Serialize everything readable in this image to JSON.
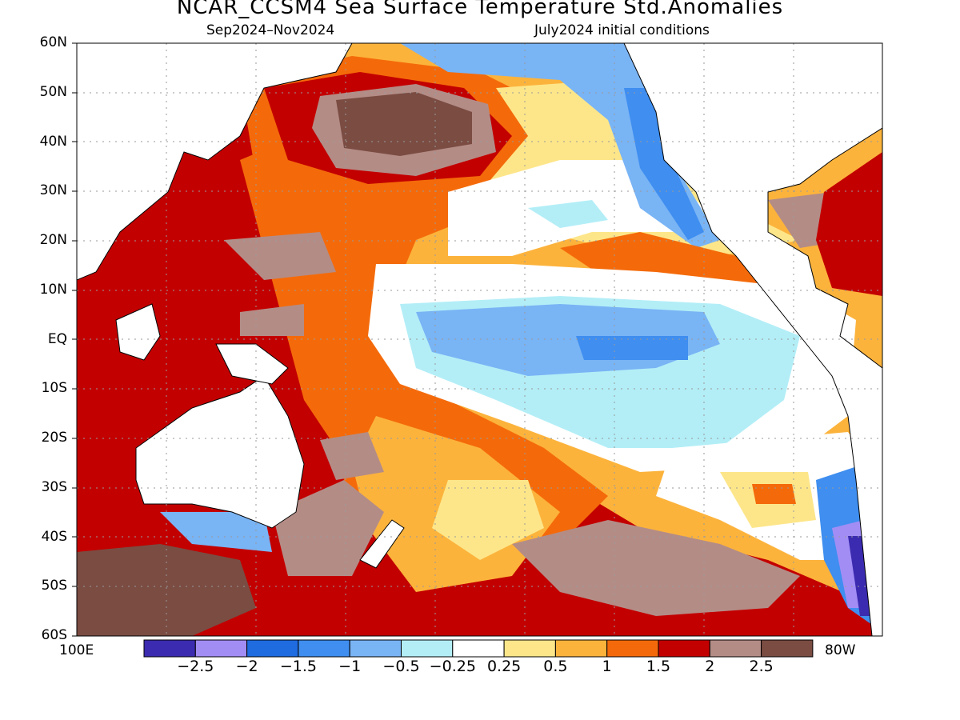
{
  "title": "NCAR_CCSM4 Sea Surface Temperature Std.Anomalies",
  "subtitle_left": "Sep2024–Nov2024",
  "subtitle_right": "July2024 initial conditions",
  "lat_labels": [
    "60N",
    "50N",
    "40N",
    "30N",
    "20N",
    "10N",
    "EQ",
    "10S",
    "20S",
    "30S",
    "40S",
    "50S",
    "60S"
  ],
  "lon_labels": {
    "left": "100E",
    "right": "80W"
  },
  "colorbar": {
    "labels": [
      "-2.5",
      "-2",
      "-1.5",
      "-1",
      "-0.5",
      "-0.25",
      "0.25",
      "0.5",
      "1",
      "1.5",
      "2",
      "2.5"
    ],
    "colors": [
      "#3b2bb0",
      "#a28df5",
      "#1f6be0",
      "#3f8ef0",
      "#79b4f5",
      "#b3eef7",
      "#ffffff",
      "#fde68a",
      "#fcb33c",
      "#f46a0a",
      "#c30000",
      "#b48c86",
      "#7a4c42"
    ]
  }
}
